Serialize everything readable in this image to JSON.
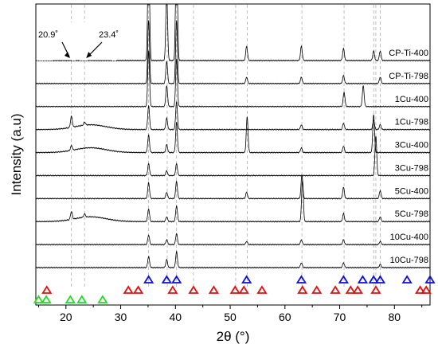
{
  "chart_data": {
    "type": "line",
    "title": "",
    "xlabel": "2θ (°)",
    "ylabel": "Intensity (a.u)",
    "xlim": [
      14.5,
      86.5
    ],
    "x_ticks": [
      20,
      30,
      40,
      50,
      60,
      70,
      80
    ],
    "x_tick_labels": [
      "20",
      "30",
      "40",
      "50",
      "60",
      "70",
      "80"
    ],
    "y_ticks_shown": false,
    "reference_lines": [
      21.0,
      23.4,
      35.1,
      38.5,
      40.2,
      43.3,
      51.0,
      53.1,
      63.1,
      70.8,
      76.2,
      76.6,
      77.4
    ],
    "annotations": [
      {
        "text": "20.9˚",
        "x": 20.9
      },
      {
        "text": "23.4˚",
        "x": 23.4
      }
    ],
    "series": [
      {
        "name": "CP-Ti-400",
        "peaks": [
          [
            35.1,
            155
          ],
          [
            38.4,
            85
          ],
          [
            40.2,
            180
          ],
          [
            53.0,
            18
          ],
          [
            63.0,
            18
          ],
          [
            70.7,
            15
          ],
          [
            76.2,
            12
          ],
          [
            77.4,
            12
          ]
        ]
      },
      {
        "name": "CP-Ti-798",
        "peaks": [
          [
            35.1,
            80
          ],
          [
            38.4,
            28
          ],
          [
            40.2,
            80
          ],
          [
            53.0,
            8
          ],
          [
            63.0,
            8
          ],
          [
            70.7,
            10
          ],
          [
            77.4,
            8
          ]
        ]
      },
      {
        "name": "1Cu-400",
        "peaks": [
          [
            35.1,
            70
          ],
          [
            38.4,
            26
          ],
          [
            40.2,
            60
          ],
          [
            70.8,
            18
          ],
          [
            74.3,
            26
          ]
        ]
      },
      {
        "name": "1Cu-798",
        "peaks": [
          [
            21.0,
            14
          ],
          [
            23.4,
            4
          ],
          [
            35.1,
            30
          ],
          [
            38.4,
            14
          ],
          [
            40.2,
            35
          ],
          [
            63.0,
            6
          ],
          [
            70.7,
            8
          ],
          [
            76.2,
            12
          ],
          [
            77.4,
            6
          ]
        ]
      },
      {
        "name": "3Cu-400",
        "peaks": [
          [
            21.0,
            6
          ],
          [
            35.1,
            22
          ],
          [
            38.4,
            10
          ],
          [
            40.2,
            38
          ],
          [
            53.1,
            45
          ],
          [
            63.0,
            6
          ],
          [
            70.7,
            8
          ],
          [
            76.2,
            48
          ]
        ]
      },
      {
        "name": "3Cu-798",
        "peaks": [
          [
            35.1,
            15
          ],
          [
            38.4,
            6
          ],
          [
            40.2,
            15
          ],
          [
            76.6,
            50
          ]
        ]
      },
      {
        "name": "5Cu-400",
        "peaks": [
          [
            35.1,
            20
          ],
          [
            38.4,
            8
          ],
          [
            40.2,
            22
          ],
          [
            53.0,
            8
          ],
          [
            63.1,
            30
          ],
          [
            70.7,
            14
          ],
          [
            77.4,
            10
          ]
        ]
      },
      {
        "name": "5Cu-798",
        "peaks": [
          [
            21.0,
            10
          ],
          [
            23.4,
            4
          ],
          [
            35.1,
            16
          ],
          [
            38.4,
            6
          ],
          [
            40.2,
            20
          ],
          [
            63.2,
            52
          ],
          [
            70.7,
            10
          ],
          [
            77.4,
            6
          ]
        ]
      },
      {
        "name": "10Cu-400",
        "peaks": [
          [
            35.1,
            12
          ],
          [
            38.4,
            6
          ],
          [
            40.2,
            14
          ],
          [
            53.0,
            4
          ],
          [
            63.0,
            6
          ],
          [
            70.7,
            6
          ],
          [
            77.4,
            4
          ]
        ]
      },
      {
        "name": "10Cu-798",
        "peaks": [
          [
            35.1,
            14
          ],
          [
            38.4,
            10
          ],
          [
            40.2,
            20
          ],
          [
            63.0,
            6
          ],
          [
            70.7,
            6
          ],
          [
            77.4,
            4
          ]
        ]
      }
    ],
    "phase_markers": [
      {
        "color": "#1010dd",
        "row": 1,
        "x": [
          35.1,
          38.4,
          40.2,
          53.0,
          63.0,
          70.7,
          74.2,
          76.2,
          77.4,
          82.3,
          86.5
        ]
      },
      {
        "color": "#e01010",
        "row": 2,
        "x": [
          16.5,
          31.4,
          33.2,
          39.5,
          43.3,
          47.0,
          50.9,
          52.5,
          55.8,
          63.2,
          65.8,
          69.2,
          72.0,
          73.3,
          76.6,
          84.7,
          85.8
        ]
      },
      {
        "color": "#22dd22",
        "row": 3,
        "x": [
          15.0,
          16.4,
          20.8,
          22.9,
          26.7
        ]
      }
    ]
  }
}
